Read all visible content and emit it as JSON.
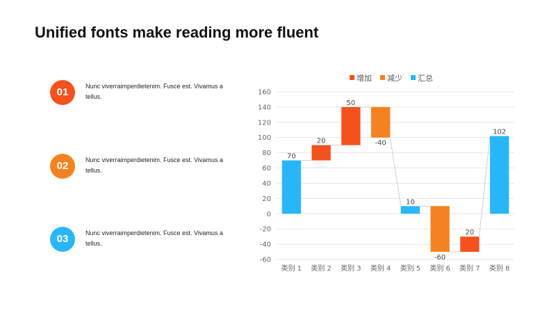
{
  "slide": {
    "title": "Unified fonts make reading more fluent"
  },
  "items": [
    {
      "number": "01",
      "text": "Nunc viverraimperdietenim. Fusce est. Vivamus a tellus.",
      "color": "#F4511E"
    },
    {
      "number": "02",
      "text": "Nunc viverraimperdietenim. Fusce est. Vivamus a tellus.",
      "color": "#F58220"
    },
    {
      "number": "03",
      "text": "Nunc viverraimperdietenim. Fusce est. Vivamus a tellus.",
      "color": "#29B6F6"
    }
  ],
  "chart_data": {
    "type": "bar",
    "subtype": "waterfall",
    "categories": [
      "类别 1",
      "类别 2",
      "类别 3",
      "类别 4",
      "类别 5",
      "类别 6",
      "类别 7",
      "类别 8"
    ],
    "bars": [
      {
        "base": 0,
        "top": 70,
        "kind": "total",
        "label": "70"
      },
      {
        "base": 70,
        "top": 90,
        "kind": "increase",
        "label": "20"
      },
      {
        "base": 90,
        "top": 140,
        "kind": "increase",
        "label": "50"
      },
      {
        "base": 100,
        "top": 140,
        "kind": "decrease",
        "label": "-40"
      },
      {
        "base": 0,
        "top": 10,
        "kind": "total",
        "label": "10"
      },
      {
        "base": -50,
        "top": 10,
        "kind": "decrease",
        "label": "-60"
      },
      {
        "base": -50,
        "top": -30,
        "kind": "increase",
        "label": "20"
      },
      {
        "base": 0,
        "top": 102,
        "kind": "total",
        "label": "102"
      }
    ],
    "legend": [
      {
        "name": "增加",
        "kind": "increase"
      },
      {
        "name": "减少",
        "kind": "decrease"
      },
      {
        "name": "汇总",
        "kind": "total"
      }
    ],
    "colors": {
      "increase": "#F4511E",
      "decrease": "#F58220",
      "total": "#29B6F6"
    },
    "ylim": [
      -60,
      160
    ],
    "yticks": [
      160,
      140,
      120,
      100,
      80,
      60,
      40,
      20,
      0,
      -20,
      -40,
      -60
    ],
    "grid": true,
    "legend_position": "top"
  }
}
